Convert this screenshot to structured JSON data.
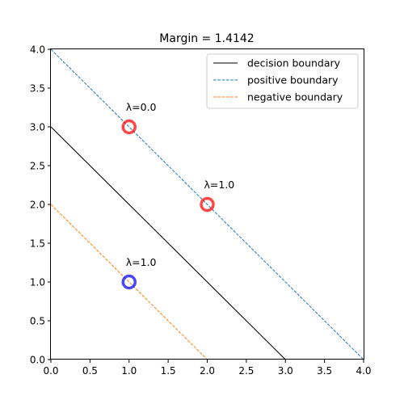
{
  "chart_data": {
    "type": "line",
    "title": "Margin = 1.4142",
    "xlim": [
      0.0,
      4.0
    ],
    "ylim": [
      0.0,
      4.0
    ],
    "x_ticks": [
      "0.0",
      "0.5",
      "1.0",
      "1.5",
      "2.0",
      "2.5",
      "3.0",
      "3.5",
      "4.0"
    ],
    "y_ticks": [
      "0.0",
      "0.5",
      "1.0",
      "1.5",
      "2.0",
      "2.5",
      "3.0",
      "3.5",
      "4.0"
    ],
    "grid": false,
    "legend_position": "top-right",
    "series": [
      {
        "name": "decision boundary",
        "color": "#000000",
        "style": "solid",
        "x": [
          0,
          3
        ],
        "y": [
          3,
          0
        ]
      },
      {
        "name": "positive boundary",
        "color": "#1f77b4",
        "style": "dashed",
        "x": [
          0,
          4
        ],
        "y": [
          4,
          0
        ]
      },
      {
        "name": "negative boundary",
        "color": "#ff7f0e",
        "style": "dashed",
        "x": [
          0,
          2
        ],
        "y": [
          2,
          0
        ]
      }
    ],
    "points": [
      {
        "x": 1,
        "y": 3,
        "color": "#ff0000",
        "annotation": "λ=0.0"
      },
      {
        "x": 2,
        "y": 2,
        "color": "#ff0000",
        "annotation": "λ=1.0"
      },
      {
        "x": 1,
        "y": 1,
        "color": "#0000ff",
        "annotation": "λ=1.0"
      }
    ]
  }
}
